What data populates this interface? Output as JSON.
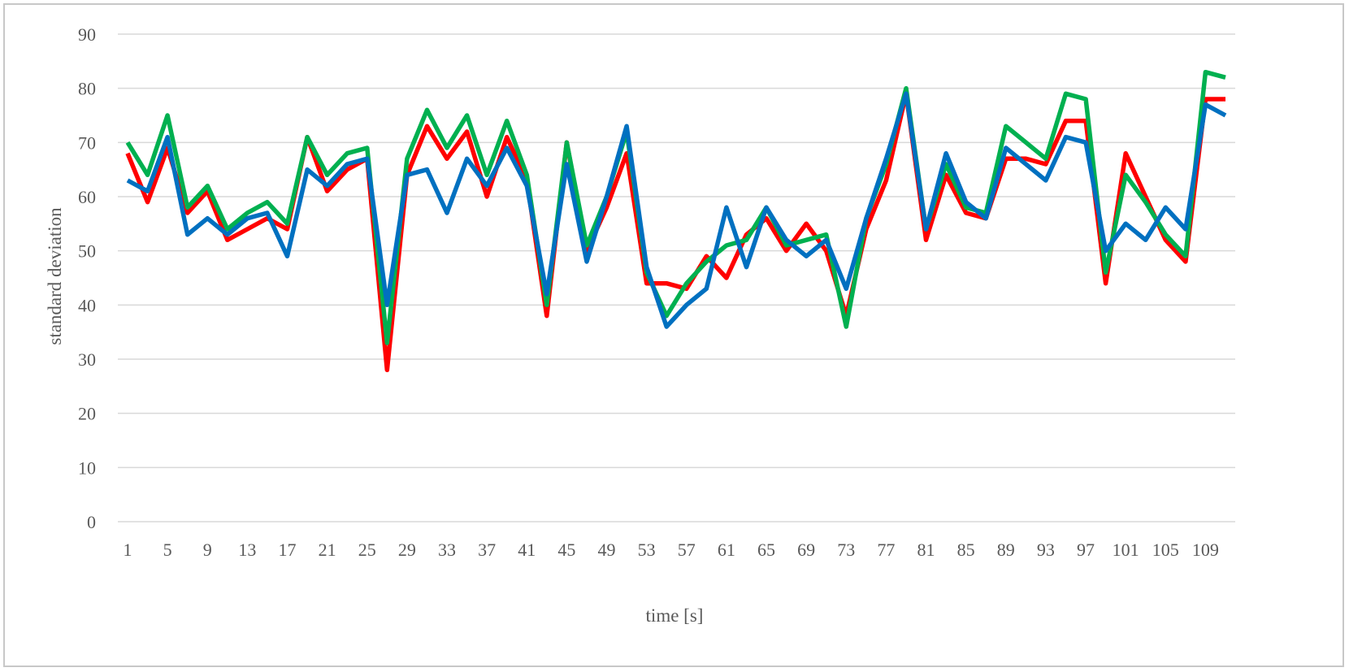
{
  "chart_data": {
    "type": "line",
    "xlabel": "time [s]",
    "ylabel": "standard deviation",
    "ylim": [
      0,
      90
    ],
    "yticks": [
      0,
      10,
      20,
      30,
      40,
      50,
      60,
      70,
      80,
      90
    ],
    "x": [
      1,
      3,
      5,
      7,
      9,
      11,
      13,
      15,
      17,
      19,
      21,
      23,
      25,
      27,
      29,
      31,
      33,
      35,
      37,
      39,
      41,
      43,
      45,
      47,
      49,
      51,
      53,
      55,
      57,
      59,
      61,
      63,
      65,
      67,
      69,
      71,
      73,
      75,
      77,
      79,
      81,
      83,
      85,
      87,
      89,
      91,
      93,
      95,
      97,
      99,
      101,
      103,
      105,
      107,
      109,
      111
    ],
    "xtick_labels": [
      "1",
      "5",
      "9",
      "13",
      "17",
      "21",
      "25",
      "29",
      "33",
      "37",
      "41",
      "45",
      "49",
      "53",
      "57",
      "61",
      "65",
      "69",
      "73",
      "77",
      "81",
      "85",
      "89",
      "93",
      "97",
      "101",
      "105",
      "109"
    ],
    "grid": true,
    "series": [
      {
        "color": "#ff0000",
        "values": [
          68,
          59,
          69,
          57,
          61,
          52,
          54,
          56,
          54,
          71,
          61,
          65,
          67,
          28,
          64,
          73,
          67,
          72,
          60,
          71,
          63,
          38,
          70,
          50,
          58,
          68,
          44,
          44,
          43,
          49,
          45,
          53,
          56,
          50,
          55,
          50,
          38,
          54,
          63,
          79,
          52,
          64,
          57,
          56,
          67,
          67,
          66,
          74,
          74,
          44,
          68,
          60,
          52,
          48,
          78,
          78
        ]
      },
      {
        "color": "#00b050",
        "values": [
          70,
          64,
          75,
          58,
          62,
          54,
          57,
          59,
          55,
          71,
          64,
          68,
          69,
          33,
          67,
          76,
          69,
          75,
          64,
          74,
          64,
          40,
          70,
          51,
          60,
          72,
          46,
          38,
          44,
          48,
          51,
          52,
          58,
          51,
          52,
          53,
          36,
          56,
          66,
          80,
          54,
          66,
          58,
          57,
          73,
          70,
          67,
          79,
          78,
          46,
          64,
          59,
          53,
          49,
          83,
          82
        ]
      },
      {
        "color": "#0070c0",
        "values": [
          63,
          61,
          71,
          53,
          56,
          53,
          56,
          57,
          49,
          65,
          62,
          66,
          67,
          40,
          64,
          65,
          57,
          67,
          62,
          69,
          62,
          42,
          66,
          48,
          60,
          73,
          47,
          36,
          40,
          43,
          58,
          47,
          58,
          52,
          49,
          52,
          43,
          56,
          67,
          79,
          54,
          68,
          59,
          56,
          69,
          66,
          63,
          71,
          70,
          50,
          55,
          52,
          58,
          54,
          77,
          75
        ]
      }
    ]
  }
}
